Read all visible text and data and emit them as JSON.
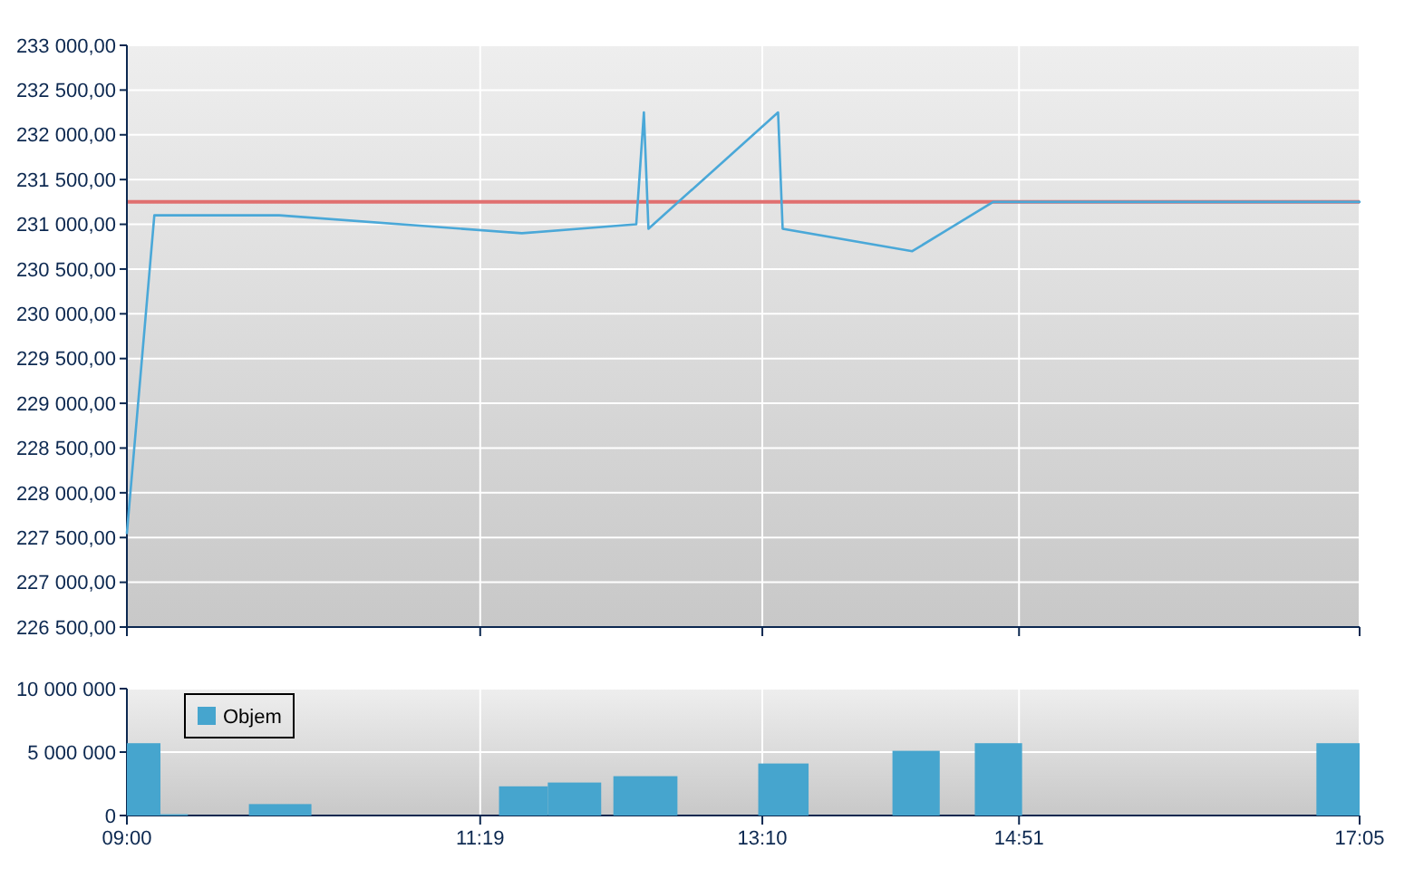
{
  "chart_data": [
    {
      "type": "line",
      "x": [
        9,
        9.18,
        10.0,
        11.59,
        12.34,
        12.39,
        12.42,
        13.27,
        13.3,
        14.15,
        14.68,
        17.0833
      ],
      "series": [
        {
          "color": "#4aa8d8",
          "values": [
            227550,
            231100,
            231100,
            230900,
            231000,
            232250,
            230950,
            232250,
            230950,
            230700,
            231250,
            231250
          ]
        }
      ],
      "xlim": [
        9,
        17.0833
      ],
      "xticks": [
        {
          "value": 9,
          "label": null
        },
        {
          "value": 11.3167,
          "label": null
        },
        {
          "value": 13.1667,
          "label": null
        },
        {
          "value": 14.85,
          "label": null
        },
        {
          "value": 17.0833,
          "label": null
        }
      ],
      "ylim": [
        226500,
        233000
      ],
      "yticks": [
        {
          "value": 226500,
          "label": "226 500,00"
        },
        {
          "value": 227000,
          "label": "227 000,00"
        },
        {
          "value": 227500,
          "label": "227 500,00"
        },
        {
          "value": 228000,
          "label": "228 000,00"
        },
        {
          "value": 228500,
          "label": "228 500,00"
        },
        {
          "value": 229000,
          "label": "229 000,00"
        },
        {
          "value": 229500,
          "label": "229 500,00"
        },
        {
          "value": 230000,
          "label": "230 000,00"
        },
        {
          "value": 230500,
          "label": "230 500,00"
        },
        {
          "value": 231000,
          "label": "231 000,00"
        },
        {
          "value": 231500,
          "label": "231 500,00"
        },
        {
          "value": 232000,
          "label": "232 000,00"
        },
        {
          "value": 232500,
          "label": "232 500,00"
        },
        {
          "value": 233000,
          "label": "233 000,00"
        }
      ],
      "ref_lines": [
        {
          "axis": "y",
          "value": 231250,
          "color": "#e07070"
        }
      ],
      "grid": true,
      "tick_labels": "y"
    },
    {
      "type": "histogram",
      "bins": [
        9,
        9.22,
        9.4,
        9.8,
        10.21,
        11.44,
        11.76,
        12.11,
        12.19,
        12.61,
        13.14,
        13.47,
        14.02,
        14.33,
        14.56,
        14.87,
        16.8,
        17.0833
      ],
      "series": [
        {
          "name": "Objem",
          "color": "#46a5ce",
          "values": [
            5700000,
            100000,
            0,
            900000,
            0,
            2300000,
            2600000,
            0,
            3100000,
            0,
            4100000,
            0,
            5100000,
            0,
            5700000,
            0,
            5700000
          ]
        }
      ],
      "xlim": [
        9,
        17.0833
      ],
      "xticks": [
        {
          "value": 9,
          "label": "09:00"
        },
        {
          "value": 11.3167,
          "label": "11:19"
        },
        {
          "value": 13.1667,
          "label": "13:10"
        },
        {
          "value": 14.85,
          "label": "14:51"
        },
        {
          "value": 17.0833,
          "label": "17:05"
        }
      ],
      "ylim": [
        0,
        10000000
      ],
      "yticks": [
        {
          "value": 0,
          "label": "0"
        },
        {
          "value": 5000000,
          "label": "5 000 000"
        },
        {
          "value": 10000000,
          "label": "10 000 000"
        }
      ],
      "grid": true,
      "legend": "top left"
    }
  ]
}
